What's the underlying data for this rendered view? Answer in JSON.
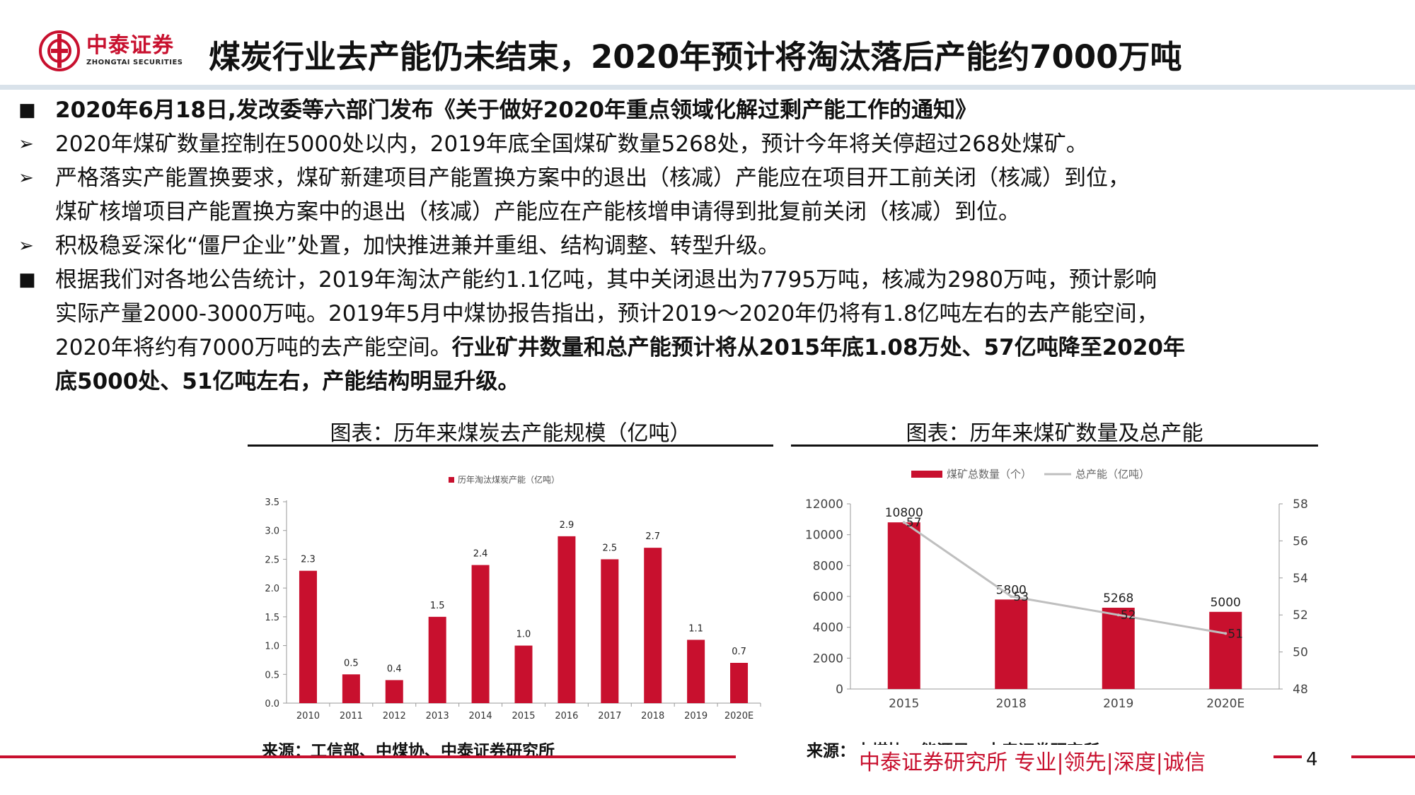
{
  "header": {
    "logo_cn": "中泰证券",
    "logo_en": "ZHONGTAI SECURITIES",
    "title": "煤炭行业去产能仍未结束，2020年预计将淘汰落后产能约7000万吨"
  },
  "bullets": {
    "b1": "2020年6月18日,发改委等六部门发布《关于做好2020年重点领域化解过剩产能工作的通知》",
    "b2": "2020年煤矿数量控制在5000处以内，2019年底全国煤矿数量5268处，预计今年将关停超过268处煤矿。",
    "b3_l1": "严格落实产能置换要求，煤矿新建项目产能置换方案中的退出（核减）产能应在项目开工前关闭（核减）到位，",
    "b3_l2": "煤矿核增项目产能置换方案中的退出（核减）产能应在产能核增申请得到批复前关闭（核减）到位。",
    "b4": "积极稳妥深化“僵尸企业”处置，加快推进兼并重组、结构调整、转型升级。",
    "b5_l1": "根据我们对各地公告统计，2019年淘汰产能约1.1亿吨，其中关闭退出为7795万吨，核减为2980万吨，预计影响",
    "b5_l2": "实际产量2000-3000万吨。2019年5月中煤协报告指出，预计2019～2020年仍将有1.8亿吨左右的去产能空间，",
    "b5_l3a": "2020年将约有7000万吨的去产能空间。",
    "b5_l3b": "行业矿井数量和总产能预计将从2015年底1.08万处、57亿吨降至2020年",
    "b5_l4": "底5000处、51亿吨左右，产能结构明显升级。"
  },
  "chart_left": {
    "heading": "图表：历年来煤炭去产能规模（亿吨）",
    "source": "来源：工信部、中煤协、中泰证券研究所"
  },
  "chart_right": {
    "heading": "图表：历年来煤矿数量及总产能",
    "source": "来源：中煤协、能源局、中泰证券研究所"
  },
  "footer": {
    "slogan": "中泰证券研究所 专业|领先|深度|诚信",
    "page": "4"
  },
  "colors": {
    "brand_red": "#c8102e",
    "bar_red": "#c8102e",
    "line_gray": "#bfbfbf"
  },
  "chart_data": [
    {
      "type": "bar",
      "title": "",
      "categories": [
        "2010",
        "2011",
        "2012",
        "2013",
        "2014",
        "2015",
        "2016",
        "2017",
        "2018",
        "2019",
        "2020E"
      ],
      "series": [
        {
          "name": "历年淘汰煤炭产能（亿吨）",
          "values": [
            2.3,
            0.5,
            0.4,
            1.5,
            2.4,
            1.0,
            2.9,
            2.5,
            2.7,
            1.1,
            0.7
          ]
        }
      ],
      "data_labels": [
        "2.3",
        "0.5",
        "0.4",
        "1.5",
        "2.4",
        "1.0",
        "2.9",
        "2.5",
        "2.7",
        "1.1",
        "0.7"
      ],
      "yticks": [
        "0.0",
        "0.5",
        "1.0",
        "1.5",
        "2.0",
        "2.5",
        "3.0",
        "3.5"
      ],
      "ylim": [
        0,
        3.5
      ],
      "legend": "top-center",
      "grid": false
    },
    {
      "type": "bar",
      "title": "",
      "categories": [
        "2015",
        "2018",
        "2019",
        "2020E"
      ],
      "series": [
        {
          "name": "煤矿总数量（个）",
          "type": "bar",
          "axis": "left",
          "values": [
            10800,
            5800,
            5268,
            5000
          ]
        },
        {
          "name": "总产能（亿吨）",
          "type": "line",
          "axis": "right",
          "values": [
            57,
            53,
            52,
            51
          ]
        }
      ],
      "bar_labels": [
        "10800",
        "5800",
        "5268",
        "5000"
      ],
      "line_labels": [
        "57",
        "53",
        "52",
        "51"
      ],
      "yticks_left": [
        "0",
        "2000",
        "4000",
        "6000",
        "8000",
        "10000",
        "12000"
      ],
      "yticks_right": [
        "48",
        "50",
        "52",
        "54",
        "56",
        "58"
      ],
      "ylim_left": [
        0,
        12000
      ],
      "ylim_right": [
        48,
        58
      ],
      "legend": "top-center",
      "grid": false
    }
  ]
}
